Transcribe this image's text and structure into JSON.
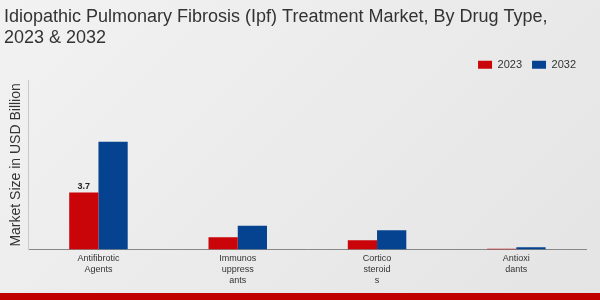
{
  "chart_data": {
    "type": "bar",
    "title": "Idiopathic Pulmonary Fibrosis (Ipf) Treatment Market, By Drug Type, 2023 & 2032",
    "y_label": "Market Size in USD Billion",
    "categories": [
      "Antifibrotic\nAgents",
      "Immunos\nuppress\nants",
      "Cortico\nsteroid\ns",
      "Antioxi\ndants"
    ],
    "series": [
      {
        "name": "2023",
        "color": "#c9050a",
        "values": [
          3.7,
          0.8,
          0.6,
          0.05
        ],
        "value_labels": [
          "3.7",
          null,
          null,
          null
        ]
      },
      {
        "name": "2032",
        "color": "#054391",
        "values": [
          7.0,
          1.55,
          1.25,
          0.15
        ]
      }
    ],
    "ylim": [
      0,
      11
    ],
    "grid": false,
    "legend": "upper right",
    "tick_labels": "x"
  }
}
